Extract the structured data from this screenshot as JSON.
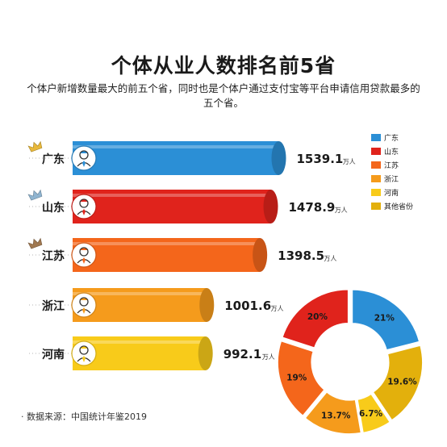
{
  "title": "个体从业人数排名前5省",
  "subtitle": "个体户新增数量最大的前五个省，同时也是个体户通过支付宝等平台申请信用贷款最多的五个省。",
  "source": "· 数据来源：中国统计年鉴2019",
  "unit": "万人",
  "colors": {
    "guangdong": "#2b8fd6",
    "shandong": "#e0231c",
    "jiangsu": "#f4661b",
    "zhejiang": "#f59b1c",
    "henan": "#f8cb1a",
    "other": "#e3b00c"
  },
  "chart_data": [
    {
      "type": "bar",
      "orientation": "horizontal",
      "categories": [
        "广东",
        "山东",
        "江苏",
        "浙江",
        "河南"
      ],
      "values": [
        1539.1,
        1478.9,
        1398.5,
        1001.6,
        992.1
      ],
      "value_labels": [
        "1539.1",
        "1478.9",
        "1398.5",
        "1001.6",
        "992.1"
      ],
      "unit": "万人",
      "crowns": [
        {
          "rank": 1,
          "icon": "gold-crown-icon",
          "color": "#e8b83a"
        },
        {
          "rank": 2,
          "icon": "silver-crown-icon",
          "color": "#8fb4d0"
        },
        {
          "rank": 3,
          "icon": "bronze-crown-icon",
          "color": "#a07850"
        }
      ],
      "icon": "person-avatar-icon"
    },
    {
      "type": "pie",
      "style": "donut",
      "legend_position": "right",
      "slices": [
        {
          "label": "广东",
          "percent": 21,
          "display": "21%"
        },
        {
          "label": "其他省份",
          "percent": 19.6,
          "display": "19.6%"
        },
        {
          "label": "河南",
          "percent": 6.7,
          "display": "6.7%"
        },
        {
          "label": "浙江",
          "percent": 13.7,
          "display": "13.7%"
        },
        {
          "label": "江苏",
          "percent": 19,
          "display": "19%"
        },
        {
          "label": "山东",
          "percent": 20,
          "display": "20%"
        }
      ],
      "legend": [
        "广东",
        "山东",
        "江苏",
        "浙江",
        "河南",
        "其他省份"
      ]
    }
  ]
}
